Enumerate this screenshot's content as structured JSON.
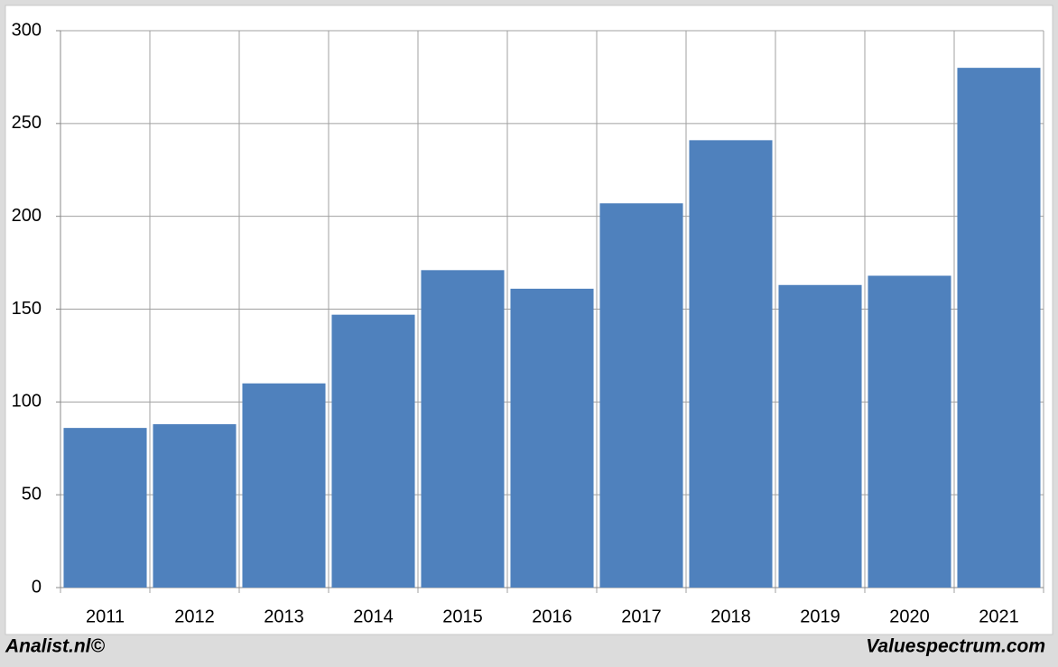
{
  "chart_data": {
    "type": "bar",
    "categories": [
      "2011",
      "2012",
      "2013",
      "2014",
      "2015",
      "2016",
      "2017",
      "2018",
      "2019",
      "2020",
      "2021"
    ],
    "values": [
      86,
      88,
      110,
      147,
      171,
      161,
      207,
      241,
      163,
      168,
      280
    ],
    "color": "#4f81bd",
    "ylim": [
      0,
      300
    ],
    "yticks": [
      0,
      50,
      100,
      150,
      200,
      250,
      300
    ],
    "grid": true,
    "footer_left": "Analist.nl©",
    "footer_right": "Valuespectrum.com"
  }
}
